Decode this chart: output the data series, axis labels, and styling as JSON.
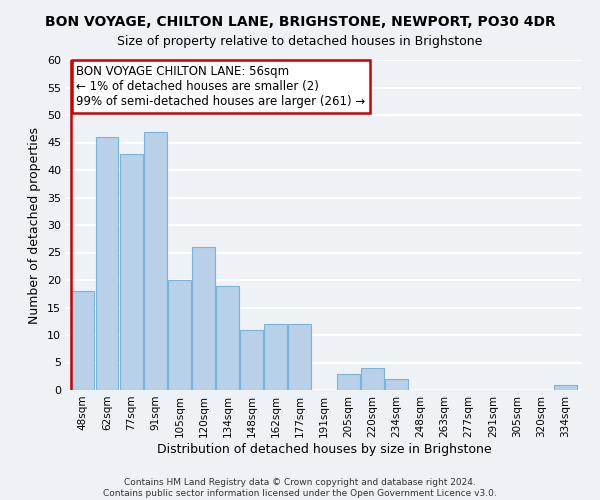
{
  "title": "BON VOYAGE, CHILTON LANE, BRIGHSTONE, NEWPORT, PO30 4DR",
  "subtitle": "Size of property relative to detached houses in Brighstone",
  "xlabel": "Distribution of detached houses by size in Brighstone",
  "ylabel": "Number of detached properties",
  "bin_labels": [
    "48sqm",
    "62sqm",
    "77sqm",
    "91sqm",
    "105sqm",
    "120sqm",
    "134sqm",
    "148sqm",
    "162sqm",
    "177sqm",
    "191sqm",
    "205sqm",
    "220sqm",
    "234sqm",
    "248sqm",
    "263sqm",
    "277sqm",
    "291sqm",
    "305sqm",
    "320sqm",
    "334sqm"
  ],
  "bar_heights": [
    18,
    46,
    43,
    47,
    20,
    26,
    19,
    11,
    12,
    12,
    0,
    3,
    4,
    2,
    0,
    0,
    0,
    0,
    0,
    0,
    1
  ],
  "bar_color": "#b8d0e8",
  "bar_edge_color": "#7ab4d8",
  "highlight_line_color": "#cc0000",
  "ylim": [
    0,
    60
  ],
  "yticks": [
    0,
    5,
    10,
    15,
    20,
    25,
    30,
    35,
    40,
    45,
    50,
    55,
    60
  ],
  "annotation_title": "BON VOYAGE CHILTON LANE: 56sqm",
  "annotation_line1": "← 1% of detached houses are smaller (2)",
  "annotation_line2": "99% of semi-detached houses are larger (261) →",
  "annotation_box_color": "#ffffff",
  "annotation_box_edge": "#cc0000",
  "footer_line1": "Contains HM Land Registry data © Crown copyright and database right 2024.",
  "footer_line2": "Contains public sector information licensed under the Open Government Licence v3.0.",
  "background_color": "#eef2f7",
  "grid_color": "#ffffff",
  "title_fontsize": 10,
  "subtitle_fontsize": 9,
  "red_line_x": -0.5
}
